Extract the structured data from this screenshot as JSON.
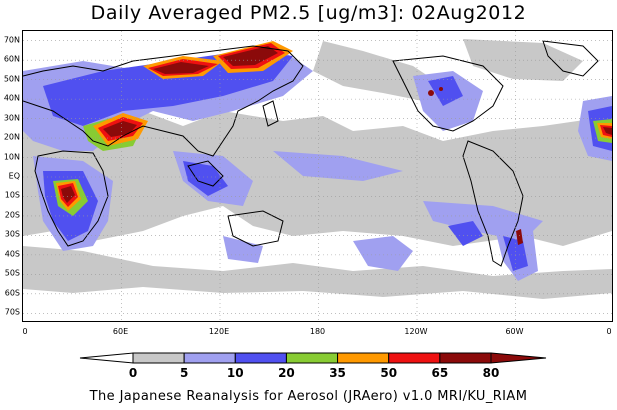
{
  "title": "Daily Averaged PM2.5 [ug/m3]: 02Aug2012",
  "credit": "The Japanese Reanalysis for Aerosol (JRAero) v1.0 MRI/KU_RIAM",
  "map": {
    "lat_labels": [
      "70N",
      "60N",
      "50N",
      "40N",
      "30N",
      "20N",
      "10N",
      "EQ",
      "10S",
      "20S",
      "30S",
      "40S",
      "50S",
      "60S",
      "70S"
    ],
    "lat_values": [
      70,
      60,
      50,
      40,
      30,
      20,
      10,
      0,
      -10,
      -20,
      -30,
      -40,
      -50,
      -60,
      -70
    ],
    "lon_labels": [
      "0",
      "60E",
      "120E",
      "180",
      "120W",
      "60W",
      "0"
    ],
    "lon_values": [
      0,
      60,
      120,
      180,
      240,
      300,
      360
    ],
    "lat_range": [
      -75,
      75
    ],
    "lon_range": [
      0,
      360
    ]
  },
  "colorbar": {
    "labels": [
      "0",
      "5",
      "10",
      "20",
      "35",
      "50",
      "65",
      "80"
    ],
    "colors": [
      "#ffffff",
      "#c8c8c8",
      "#a0a0f0",
      "#5050f0",
      "#88cc33",
      "#ff9900",
      "#ee1111",
      "#8b0a0a"
    ],
    "outline": "#000000"
  },
  "colors": {
    "class_5": "#c8c8c8",
    "class_10": "#a0a0f0",
    "class_20": "#5050f0",
    "class_35": "#88cc33",
    "class_50": "#ff9900",
    "class_65": "#ee1111",
    "class_80": "#8b0a0a",
    "coast": "#000000",
    "grid": "#999999"
  }
}
